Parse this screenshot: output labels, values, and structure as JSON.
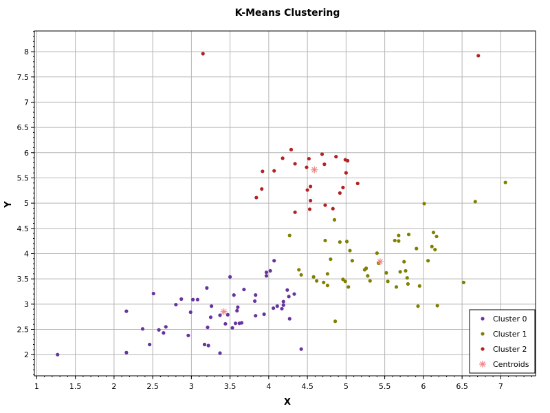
{
  "chart_data": {
    "type": "scatter",
    "title": "K-Means Clustering",
    "xlabel": "X",
    "ylabel": "Y",
    "xlim": [
      0.97,
      7.45
    ],
    "ylim": [
      1.58,
      8.41
    ],
    "x_ticks": [
      "1",
      "1.5",
      "2",
      "2.5",
      "3",
      "3.5",
      "4",
      "4.5",
      "5",
      "5.5",
      "6",
      "6.5",
      "7"
    ],
    "y_ticks": [
      "2",
      "2.5",
      "3",
      "3.5",
      "4",
      "4.5",
      "5",
      "5.5",
      "6",
      "6.5",
      "7",
      "7.5",
      "8"
    ],
    "grid": true,
    "legend_position": "bottom-right",
    "series": [
      {
        "name": "Cluster 0",
        "color": "#6633a0",
        "marker": "dot",
        "points": [
          [
            1.27,
            2.0
          ],
          [
            2.16,
            2.86
          ],
          [
            2.16,
            2.04
          ],
          [
            2.37,
            2.51
          ],
          [
            2.46,
            2.2
          ],
          [
            2.51,
            3.21
          ],
          [
            2.58,
            2.49
          ],
          [
            2.64,
            2.43
          ],
          [
            2.67,
            2.55
          ],
          [
            2.8,
            2.99
          ],
          [
            2.87,
            3.1
          ],
          [
            2.96,
            2.38
          ],
          [
            2.99,
            2.84
          ],
          [
            3.02,
            3.09
          ],
          [
            3.08,
            3.09
          ],
          [
            3.17,
            2.2
          ],
          [
            3.2,
            3.32
          ],
          [
            3.21,
            2.54
          ],
          [
            3.22,
            2.18
          ],
          [
            3.25,
            2.74
          ],
          [
            3.26,
            2.96
          ],
          [
            3.37,
            2.78
          ],
          [
            3.37,
            2.03
          ],
          [
            3.44,
            2.61
          ],
          [
            3.47,
            2.79
          ],
          [
            3.5,
            3.54
          ],
          [
            3.53,
            2.53
          ],
          [
            3.55,
            3.18
          ],
          [
            3.57,
            2.62
          ],
          [
            3.59,
            2.87
          ],
          [
            3.6,
            2.94
          ],
          [
            3.62,
            2.62
          ],
          [
            3.65,
            2.63
          ],
          [
            3.68,
            3.29
          ],
          [
            3.82,
            3.06
          ],
          [
            3.83,
            3.18
          ],
          [
            3.83,
            2.77
          ],
          [
            3.94,
            2.8
          ],
          [
            3.97,
            3.56
          ],
          [
            3.97,
            3.63
          ],
          [
            4.02,
            3.66
          ],
          [
            4.06,
            2.92
          ],
          [
            4.07,
            3.86
          ],
          [
            4.11,
            2.96
          ],
          [
            4.17,
            2.91
          ],
          [
            4.19,
            2.98
          ],
          [
            4.19,
            3.05
          ],
          [
            4.24,
            3.28
          ],
          [
            4.26,
            3.15
          ],
          [
            4.27,
            2.71
          ],
          [
            4.33,
            3.2
          ],
          [
            4.42,
            2.11
          ]
        ]
      },
      {
        "name": "Cluster 1",
        "color": "#808000",
        "marker": "dot",
        "points": [
          [
            4.27,
            4.36
          ],
          [
            4.39,
            3.68
          ],
          [
            4.42,
            3.58
          ],
          [
            4.58,
            3.54
          ],
          [
            4.62,
            3.46
          ],
          [
            4.71,
            3.43
          ],
          [
            4.73,
            4.26
          ],
          [
            4.76,
            3.6
          ],
          [
            4.76,
            3.37
          ],
          [
            4.8,
            3.89
          ],
          [
            4.85,
            4.67
          ],
          [
            4.86,
            2.66
          ],
          [
            4.92,
            4.23
          ],
          [
            4.96,
            3.49
          ],
          [
            4.99,
            3.45
          ],
          [
            5.01,
            4.24
          ],
          [
            5.03,
            3.34
          ],
          [
            5.05,
            4.06
          ],
          [
            5.08,
            3.86
          ],
          [
            5.24,
            3.68
          ],
          [
            5.26,
            3.71
          ],
          [
            5.28,
            3.56
          ],
          [
            5.31,
            3.46
          ],
          [
            5.4,
            4.01
          ],
          [
            5.42,
            3.81
          ],
          [
            5.52,
            3.62
          ],
          [
            5.54,
            3.45
          ],
          [
            5.63,
            4.26
          ],
          [
            5.65,
            3.34
          ],
          [
            5.68,
            4.36
          ],
          [
            5.68,
            4.25
          ],
          [
            5.7,
            3.64
          ],
          [
            5.75,
            3.84
          ],
          [
            5.77,
            3.66
          ],
          [
            5.79,
            3.52
          ],
          [
            5.8,
            3.4
          ],
          [
            5.81,
            4.38
          ],
          [
            5.91,
            4.1
          ],
          [
            5.93,
            2.96
          ],
          [
            5.95,
            3.36
          ],
          [
            6.01,
            4.99
          ],
          [
            6.06,
            3.86
          ],
          [
            6.11,
            4.14
          ],
          [
            6.13,
            4.42
          ],
          [
            6.15,
            4.08
          ],
          [
            6.17,
            4.34
          ],
          [
            6.18,
            2.97
          ],
          [
            6.52,
            3.43
          ],
          [
            6.67,
            5.03
          ],
          [
            7.06,
            5.41
          ]
        ]
      },
      {
        "name": "Cluster 2",
        "color": "#b22222",
        "marker": "dot",
        "points": [
          [
            3.15,
            7.96
          ],
          [
            3.84,
            5.11
          ],
          [
            3.91,
            5.28
          ],
          [
            3.92,
            5.63
          ],
          [
            4.07,
            5.64
          ],
          [
            4.18,
            5.89
          ],
          [
            4.29,
            6.06
          ],
          [
            4.34,
            5.78
          ],
          [
            4.34,
            4.82
          ],
          [
            4.49,
            5.71
          ],
          [
            4.5,
            5.26
          ],
          [
            4.52,
            5.88
          ],
          [
            4.53,
            4.88
          ],
          [
            4.54,
            5.33
          ],
          [
            4.54,
            5.05
          ],
          [
            4.69,
            5.97
          ],
          [
            4.72,
            5.77
          ],
          [
            4.73,
            4.96
          ],
          [
            4.83,
            4.89
          ],
          [
            4.87,
            5.92
          ],
          [
            4.92,
            5.2
          ],
          [
            4.96,
            5.31
          ],
          [
            4.99,
            5.86
          ],
          [
            5.0,
            5.6
          ],
          [
            5.02,
            5.84
          ],
          [
            5.15,
            5.39
          ],
          [
            6.71,
            7.92
          ]
        ]
      },
      {
        "name": "Centroids",
        "color": "#f08080",
        "marker": "star",
        "points": [
          [
            3.42,
            2.85
          ],
          [
            4.59,
            5.66
          ],
          [
            5.44,
            3.84
          ]
        ]
      }
    ]
  }
}
